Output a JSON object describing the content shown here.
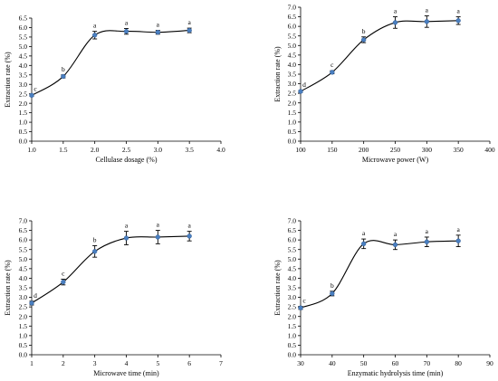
{
  "chart_data": [
    {
      "type": "line",
      "xlabel": "Cellulase dosage  (%)",
      "ylabel": "Extraction rate (%)",
      "xlim": [
        1.0,
        4.0
      ],
      "ylim": [
        0.0,
        6.5
      ],
      "xticks": [
        1.0,
        1.5,
        2.0,
        2.5,
        3.0,
        3.5,
        4.0
      ],
      "xtick_labels": [
        "1.0",
        "1.5",
        "2.0",
        "2.5",
        "3.0",
        "3.5",
        "4.0"
      ],
      "yticks": [
        0.0,
        0.5,
        1.0,
        1.5,
        2.0,
        2.5,
        3.0,
        3.5,
        4.0,
        4.5,
        5.0,
        5.5,
        6.0,
        6.5
      ],
      "ytick_labels": [
        "0.0",
        "0.5",
        "1.0",
        "1.5",
        "2.0",
        "2.5",
        "3.0",
        "3.5",
        "4.0",
        "4.5",
        "5.0",
        "5.5",
        "6.0",
        "6.5"
      ],
      "grid": false,
      "x": [
        1.0,
        1.5,
        2.0,
        2.5,
        3.0,
        3.5
      ],
      "y": [
        2.42,
        3.42,
        5.6,
        5.8,
        5.75,
        5.85
      ],
      "err": [
        0.05,
        0.08,
        0.2,
        0.15,
        0.1,
        0.12
      ],
      "labels": [
        "c",
        "b",
        "a",
        "a",
        "a",
        "a"
      ]
    },
    {
      "type": "line",
      "xlabel": "Microwave power (W)",
      "ylabel": "Extraction rate (%)",
      "xlim": [
        100,
        400
      ],
      "ylim": [
        0.0,
        7.0
      ],
      "xticks": [
        100,
        150,
        200,
        250,
        300,
        350,
        400
      ],
      "xtick_labels": [
        "100",
        "150",
        "200",
        "250",
        "300",
        "350",
        "400"
      ],
      "yticks": [
        0.0,
        0.5,
        1.0,
        1.5,
        2.0,
        2.5,
        3.0,
        3.5,
        4.0,
        4.5,
        5.0,
        5.5,
        6.0,
        6.5,
        7.0
      ],
      "ytick_labels": [
        "0.0",
        "0.5",
        "1.0",
        "1.5",
        "2.0",
        "2.5",
        "3.0",
        "3.5",
        "4.0",
        "4.5",
        "5.0",
        "5.5",
        "6.0",
        "6.5",
        "7.0"
      ],
      "grid": false,
      "x": [
        100,
        150,
        200,
        250,
        300,
        350
      ],
      "y": [
        2.6,
        3.6,
        5.3,
        6.2,
        6.25,
        6.3
      ],
      "err": [
        0.05,
        0.08,
        0.15,
        0.3,
        0.3,
        0.2
      ],
      "labels": [
        "d",
        "c",
        "b",
        "a",
        "a",
        "a"
      ]
    },
    {
      "type": "line",
      "xlabel": "Microwave time (min)",
      "ylabel": "Extraction rate (%)",
      "xlim": [
        1,
        7
      ],
      "ylim": [
        0.0,
        7.0
      ],
      "xticks": [
        1,
        2,
        3,
        4,
        5,
        6,
        7
      ],
      "xtick_labels": [
        "1",
        "2",
        "3",
        "4",
        "5",
        "6",
        "7"
      ],
      "yticks": [
        0.0,
        0.5,
        1.0,
        1.5,
        2.0,
        2.5,
        3.0,
        3.5,
        4.0,
        4.5,
        5.0,
        5.5,
        6.0,
        6.5,
        7.0
      ],
      "ytick_labels": [
        "0.0",
        "0.5",
        "1.0",
        "1.5",
        "2.0",
        "2.5",
        "3.0",
        "3.5",
        "4.0",
        "4.5",
        "5.0",
        "5.5",
        "6.0",
        "6.5",
        "7.0"
      ],
      "grid": false,
      "x": [
        1,
        2,
        3,
        4,
        5,
        6
      ],
      "y": [
        2.7,
        3.8,
        5.4,
        6.1,
        6.15,
        6.2
      ],
      "err": [
        0.1,
        0.15,
        0.3,
        0.35,
        0.35,
        0.25
      ],
      "labels": [
        "d",
        "c",
        "b",
        "a",
        "a",
        "a"
      ]
    },
    {
      "type": "line",
      "xlabel": "Enzymatic hydrolysis time (min)",
      "ylabel": "Extraction rate (%)",
      "xlim": [
        30,
        90
      ],
      "ylim": [
        0.0,
        7.0
      ],
      "xticks": [
        30,
        40,
        50,
        60,
        70,
        80,
        90
      ],
      "xtick_labels": [
        "30",
        "40",
        "50",
        "60",
        "70",
        "80",
        "90"
      ],
      "yticks": [
        0.0,
        0.5,
        1.0,
        1.5,
        2.0,
        2.5,
        3.0,
        3.5,
        4.0,
        4.5,
        5.0,
        5.5,
        6.0,
        6.5,
        7.0
      ],
      "ytick_labels": [
        "0.0",
        "0.5",
        "1.0",
        "1.5",
        "2.0",
        "2.5",
        "3.0",
        "3.5",
        "4.0",
        "4.5",
        "5.0",
        "5.5",
        "6.0",
        "6.5",
        "7.0"
      ],
      "grid": false,
      "x": [
        30,
        40,
        50,
        60,
        70,
        80
      ],
      "y": [
        2.45,
        3.2,
        5.8,
        5.75,
        5.9,
        5.95
      ],
      "err": [
        0.08,
        0.12,
        0.25,
        0.25,
        0.25,
        0.3
      ],
      "labels": [
        "c",
        "b",
        "a",
        "a",
        "a",
        "a"
      ]
    }
  ],
  "colors": {
    "marker": "#4a7fc0",
    "line": "#000000",
    "axis": "#000000",
    "background": "#ffffff"
  }
}
